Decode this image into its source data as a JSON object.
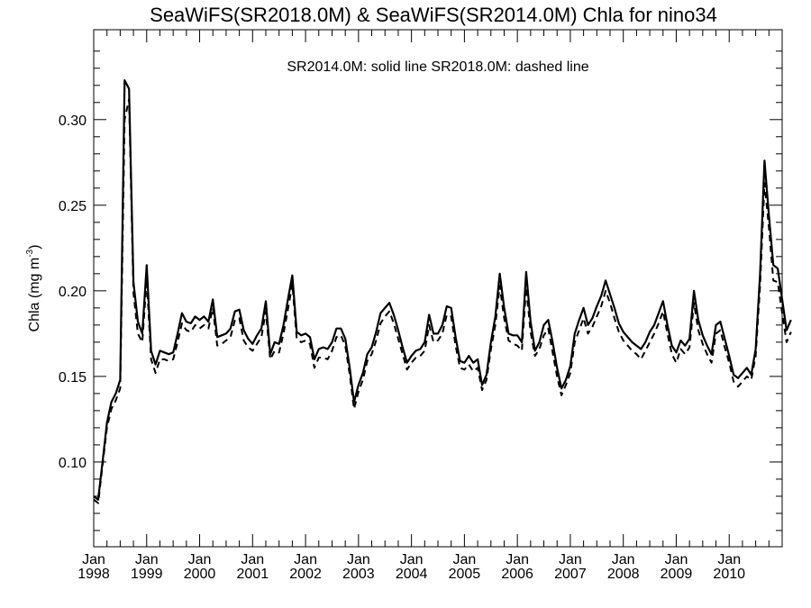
{
  "chart_data": {
    "type": "line",
    "title": "SeaWiFS(SR2018.0M) & SeaWiFS(SR2014.0M)  Chla for nino34",
    "annotation": "SR2014.0M: solid line   SR2018.0M: dashed line",
    "ylabel": "Chla (mg m",
    "ylabel_superscript": "-3",
    "ylabel_close": ")",
    "xlim": [
      "1998-01",
      "2010-12"
    ],
    "ylim": [
      0.0505,
      0.3525
    ],
    "yticks": [
      "0.10",
      "0.15",
      "0.20",
      "0.25",
      "0.30"
    ],
    "xticks": [
      {
        "month": "Jan",
        "year": "1998"
      },
      {
        "month": "Jan",
        "year": "1999"
      },
      {
        "month": "Jan",
        "year": "2000"
      },
      {
        "month": "Jan",
        "year": "2001"
      },
      {
        "month": "Jan",
        "year": "2002"
      },
      {
        "month": "Jan",
        "year": "2003"
      },
      {
        "month": "Jan",
        "year": "2004"
      },
      {
        "month": "Jan",
        "year": "2005"
      },
      {
        "month": "Jan",
        "year": "2006"
      },
      {
        "month": "Jan",
        "year": "2007"
      },
      {
        "month": "Jan",
        "year": "2008"
      },
      {
        "month": "Jan",
        "year": "2009"
      },
      {
        "month": "Jan",
        "year": "2010"
      }
    ],
    "grid": false,
    "series": [
      {
        "style": "solid",
        "color": "#000000",
        "values": [
          0.08,
          0.078,
          0.1,
          0.123,
          0.135,
          0.14,
          0.148,
          0.323,
          0.318,
          0.205,
          0.182,
          0.175,
          0.215,
          0.165,
          0.157,
          0.165,
          0.164,
          0.163,
          0.164,
          0.175,
          0.187,
          0.182,
          0.181,
          0.185,
          0.183,
          0.185,
          0.182,
          0.195,
          0.173,
          0.174,
          0.175,
          0.178,
          0.188,
          0.189,
          0.177,
          0.172,
          0.169,
          0.174,
          0.178,
          0.194,
          0.163,
          0.17,
          0.169,
          0.18,
          0.195,
          0.209,
          0.176,
          0.174,
          0.175,
          0.173,
          0.16,
          0.166,
          0.167,
          0.166,
          0.17,
          0.178,
          0.178,
          0.172,
          0.155,
          0.135,
          0.145,
          0.152,
          0.163,
          0.167,
          0.176,
          0.187,
          0.19,
          0.193,
          0.186,
          0.177,
          0.167,
          0.158,
          0.162,
          0.165,
          0.166,
          0.17,
          0.186,
          0.175,
          0.175,
          0.18,
          0.191,
          0.19,
          0.173,
          0.159,
          0.158,
          0.162,
          0.158,
          0.16,
          0.145,
          0.151,
          0.17,
          0.185,
          0.21,
          0.19,
          0.175,
          0.174,
          0.174,
          0.17,
          0.211,
          0.182,
          0.165,
          0.17,
          0.18,
          0.183,
          0.17,
          0.155,
          0.143,
          0.148,
          0.156,
          0.175,
          0.183,
          0.19,
          0.18,
          0.184,
          0.191,
          0.197,
          0.206,
          0.198,
          0.19,
          0.181,
          0.176,
          0.173,
          0.17,
          0.168,
          0.166,
          0.17,
          0.176,
          0.18,
          0.187,
          0.194,
          0.18,
          0.168,
          0.164,
          0.171,
          0.168,
          0.172,
          0.2,
          0.183,
          0.174,
          0.168,
          0.163,
          0.18,
          0.182,
          0.172,
          0.162,
          0.151,
          0.149,
          0.152,
          0.155,
          0.151,
          0.166,
          0.21,
          0.276,
          0.244,
          0.215,
          0.213,
          0.195,
          0.177,
          0.183
        ]
      },
      {
        "style": "dashed",
        "color": "#000000",
        "values": [
          0.078,
          0.076,
          0.098,
          0.12,
          0.131,
          0.136,
          0.143,
          0.3,
          0.312,
          0.199,
          0.175,
          0.17,
          0.207,
          0.16,
          0.152,
          0.16,
          0.16,
          0.159,
          0.16,
          0.17,
          0.181,
          0.177,
          0.176,
          0.18,
          0.178,
          0.18,
          0.178,
          0.19,
          0.168,
          0.169,
          0.171,
          0.173,
          0.183,
          0.184,
          0.171,
          0.167,
          0.165,
          0.169,
          0.173,
          0.188,
          0.16,
          0.165,
          0.164,
          0.175,
          0.189,
          0.204,
          0.172,
          0.17,
          0.171,
          0.169,
          0.155,
          0.161,
          0.161,
          0.16,
          0.165,
          0.173,
          0.174,
          0.168,
          0.151,
          0.131,
          0.141,
          0.148,
          0.159,
          0.163,
          0.171,
          0.181,
          0.185,
          0.188,
          0.181,
          0.172,
          0.163,
          0.154,
          0.158,
          0.161,
          0.162,
          0.165,
          0.18,
          0.17,
          0.171,
          0.175,
          0.186,
          0.185,
          0.168,
          0.155,
          0.154,
          0.157,
          0.153,
          0.155,
          0.142,
          0.148,
          0.166,
          0.18,
          0.203,
          0.184,
          0.171,
          0.169,
          0.168,
          0.165,
          0.202,
          0.176,
          0.162,
          0.166,
          0.174,
          0.178,
          0.164,
          0.15,
          0.139,
          0.145,
          0.152,
          0.17,
          0.177,
          0.184,
          0.175,
          0.179,
          0.185,
          0.191,
          0.2,
          0.193,
          0.184,
          0.176,
          0.171,
          0.168,
          0.165,
          0.163,
          0.16,
          0.165,
          0.17,
          0.175,
          0.181,
          0.188,
          0.175,
          0.163,
          0.158,
          0.166,
          0.163,
          0.167,
          0.193,
          0.177,
          0.169,
          0.163,
          0.158,
          0.175,
          0.177,
          0.167,
          0.158,
          0.147,
          0.144,
          0.147,
          0.15,
          0.148,
          0.162,
          0.203,
          0.263,
          0.237,
          0.206,
          0.205,
          0.187,
          0.17,
          0.176
        ]
      }
    ]
  }
}
